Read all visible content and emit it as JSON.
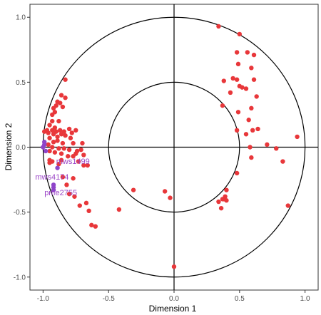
{
  "chart_data": {
    "type": "scatter",
    "title": "",
    "xlabel": "Dimension 1",
    "ylabel": "Dimension 2",
    "xlim": [
      -1.1,
      1.1
    ],
    "ylim": [
      -1.1,
      1.1
    ],
    "x_ticks": [
      "-1.0",
      "-0.5",
      "0.0",
      "0.5",
      "1.0"
    ],
    "y_ticks": [
      "1.0",
      "0.5",
      "0.0",
      "-0.5",
      "-1.0"
    ],
    "x_tick_values": [
      -1.0,
      -0.5,
      0.0,
      0.5,
      1.0
    ],
    "y_tick_values": [
      1.0,
      0.5,
      0.0,
      -0.5,
      -1.0
    ],
    "circles": [
      {
        "radius": 1.0
      },
      {
        "radius": 0.5
      }
    ],
    "reference_lines": {
      "x": 0,
      "y": 0
    },
    "grid": false,
    "legend": "none",
    "series": [
      {
        "color": "#e8373a",
        "points": [
          [
            0.34,
            0.93
          ],
          [
            0.5,
            0.87
          ],
          [
            0.56,
            0.73
          ],
          [
            0.48,
            0.73
          ],
          [
            0.61,
            0.71
          ],
          [
            0.49,
            0.64
          ],
          [
            0.59,
            0.61
          ],
          [
            0.45,
            0.53
          ],
          [
            0.48,
            0.52
          ],
          [
            0.61,
            0.52
          ],
          [
            0.38,
            0.51
          ],
          [
            0.5,
            0.47
          ],
          [
            0.52,
            0.46
          ],
          [
            0.55,
            0.45
          ],
          [
            0.43,
            0.42
          ],
          [
            0.63,
            0.39
          ],
          [
            0.37,
            0.32
          ],
          [
            0.49,
            0.27
          ],
          [
            0.59,
            0.3
          ],
          [
            0.57,
            0.21
          ],
          [
            0.64,
            0.14
          ],
          [
            0.48,
            0.13
          ],
          [
            0.6,
            0.13
          ],
          [
            0.55,
            0.1
          ],
          [
            0.94,
            0.08
          ],
          [
            0.71,
            0.02
          ],
          [
            0.58,
            0.0
          ],
          [
            0.78,
            -0.01
          ],
          [
            0.59,
            -0.08
          ],
          [
            0.83,
            -0.11
          ],
          [
            0.48,
            -0.2
          ],
          [
            0.87,
            -0.45
          ],
          [
            0.4,
            -0.33
          ],
          [
            0.34,
            -0.42
          ],
          [
            0.36,
            -0.47
          ],
          [
            0.38,
            -0.4
          ],
          [
            0.39,
            -0.38
          ],
          [
            0.4,
            -0.41
          ],
          [
            0.37,
            -0.4
          ],
          [
            -0.07,
            -0.34
          ],
          [
            -0.31,
            -0.33
          ],
          [
            -0.42,
            -0.48
          ],
          [
            -0.03,
            -0.39
          ],
          [
            0.0,
            -0.92
          ],
          [
            -0.63,
            -0.6
          ],
          [
            -0.6,
            -0.61
          ],
          [
            -0.65,
            -0.49
          ],
          [
            -0.67,
            -0.43
          ],
          [
            -0.72,
            -0.45
          ],
          [
            -0.76,
            -0.38
          ],
          [
            -0.82,
            -0.29
          ],
          [
            -0.8,
            -0.36
          ],
          [
            -0.77,
            -0.24
          ],
          [
            -0.85,
            -0.23
          ],
          [
            -0.88,
            -0.13
          ],
          [
            -0.93,
            -0.11
          ],
          [
            -0.95,
            -0.12
          ],
          [
            -0.83,
            0.52
          ],
          [
            -0.86,
            0.4
          ],
          [
            -0.83,
            0.38
          ],
          [
            -0.89,
            0.35
          ],
          [
            -0.87,
            0.34
          ],
          [
            -0.9,
            0.32
          ],
          [
            -0.85,
            0.31
          ],
          [
            -0.92,
            0.3
          ],
          [
            -0.91,
            0.27
          ],
          [
            -0.93,
            0.25
          ],
          [
            -0.88,
            0.2
          ],
          [
            -0.93,
            0.2
          ],
          [
            -0.95,
            0.17
          ],
          [
            -0.91,
            0.15
          ],
          [
            -0.97,
            0.13
          ],
          [
            -0.99,
            0.12
          ],
          [
            -0.96,
            0.11
          ],
          [
            -0.93,
            0.13
          ],
          [
            -0.9,
            0.12
          ],
          [
            -0.87,
            0.13
          ],
          [
            -0.84,
            0.12
          ],
          [
            -0.8,
            0.14
          ],
          [
            -0.78,
            0.11
          ],
          [
            -0.75,
            0.13
          ],
          [
            -0.92,
            0.1
          ],
          [
            -0.89,
            0.08
          ],
          [
            -0.86,
            0.1
          ],
          [
            -0.83,
            0.09
          ],
          [
            -0.79,
            0.07
          ],
          [
            -0.95,
            0.07
          ],
          [
            -0.92,
            0.04
          ],
          [
            -0.89,
            0.05
          ],
          [
            -0.85,
            0.03
          ],
          [
            -0.96,
            0.02
          ],
          [
            -0.93,
            0.0
          ],
          [
            -0.88,
            -0.01
          ],
          [
            -0.84,
            -0.01
          ],
          [
            -0.8,
            -0.02
          ],
          [
            -0.77,
            0.03
          ],
          [
            -0.74,
            -0.03
          ],
          [
            -0.71,
            -0.02
          ],
          [
            -0.7,
            0.03
          ],
          [
            -0.95,
            -0.03
          ],
          [
            -0.91,
            -0.04
          ],
          [
            -0.86,
            -0.05
          ],
          [
            -0.81,
            -0.07
          ],
          [
            -0.75,
            -0.05
          ],
          [
            -0.69,
            -0.06
          ],
          [
            -0.95,
            -0.1
          ],
          [
            -0.86,
            -0.1
          ],
          [
            -0.77,
            -0.07
          ],
          [
            -0.73,
            -0.11
          ],
          [
            -0.69,
            -0.14
          ],
          [
            -0.66,
            -0.14
          ],
          [
            -0.92,
            0.04
          ]
        ]
      },
      {
        "color": "#8e44c9",
        "points": [
          [
            -0.99,
            0.04
          ],
          [
            -0.99,
            0.02
          ],
          [
            -1.0,
            0.0
          ],
          [
            -0.98,
            -0.03
          ],
          [
            -0.89,
            -0.16
          ],
          [
            -0.92,
            -0.29
          ],
          [
            -0.92,
            -0.31
          ],
          [
            -0.92,
            -0.33
          ]
        ]
      }
    ],
    "annotations": [
      {
        "text": "mws1499",
        "x": -0.9,
        "y": -0.13
      },
      {
        "text": "mws4174",
        "x": -1.06,
        "y": -0.25
      },
      {
        "text": "pme2755",
        "x": -0.99,
        "y": -0.37
      }
    ],
    "annotation_color": "#9b45c7"
  }
}
